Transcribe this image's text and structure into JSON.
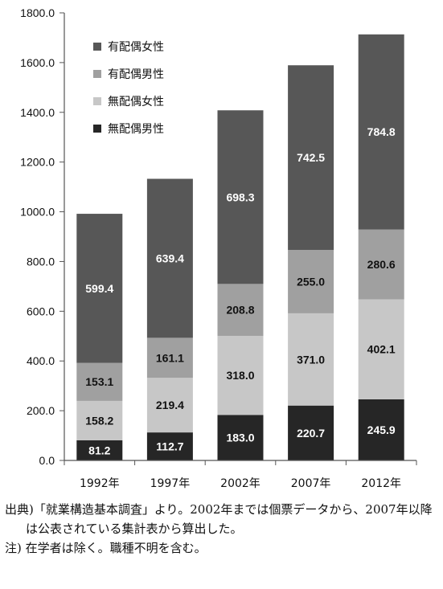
{
  "chart_data": {
    "type": "bar",
    "stacked": true,
    "categories": [
      "1992年",
      "1997年",
      "2002年",
      "2007年",
      "2012年"
    ],
    "ylim": [
      0,
      1800
    ],
    "yticks": [
      "0.0",
      "200.0",
      "400.0",
      "600.0",
      "800.0",
      "1000.0",
      "1200.0",
      "1400.0",
      "1600.0",
      "1800.0"
    ],
    "legend_position": "top-left",
    "grid": false,
    "series": [
      {
        "name": "無配偶男性",
        "color": "#262626",
        "label_color": "#ffffff",
        "values": [
          81.2,
          112.7,
          183.0,
          220.7,
          245.9
        ],
        "labels": [
          "81.2",
          "112.7",
          "183.0",
          "220.7",
          "245.9"
        ]
      },
      {
        "name": "無配偶女性",
        "color": "#c7c7c7",
        "label_color": "#111111",
        "values": [
          158.2,
          219.4,
          318.0,
          371.0,
          402.1
        ],
        "labels": [
          "158.2",
          "219.4",
          "318.0",
          "371.0",
          "402.1"
        ]
      },
      {
        "name": "有配偶男性",
        "color": "#a0a0a0",
        "label_color": "#111111",
        "values": [
          153.1,
          161.1,
          208.8,
          255.0,
          280.6
        ],
        "labels": [
          "153.1",
          "161.1",
          "208.8",
          "255.0",
          "280.6"
        ]
      },
      {
        "name": "有配偶女性",
        "color": "#575757",
        "label_color": "#ffffff",
        "values": [
          599.4,
          639.4,
          698.3,
          742.5,
          784.8
        ],
        "labels": [
          "599.4",
          "639.4",
          "698.3",
          "742.5",
          "784.8"
        ]
      }
    ]
  },
  "notes": {
    "source": "出典)「就業構造基本調査」より。2002年までは個票データから、2007年以降は公表されている集計表から算出した。",
    "note": "注) 在学者は除く。職種不明を含む。"
  }
}
